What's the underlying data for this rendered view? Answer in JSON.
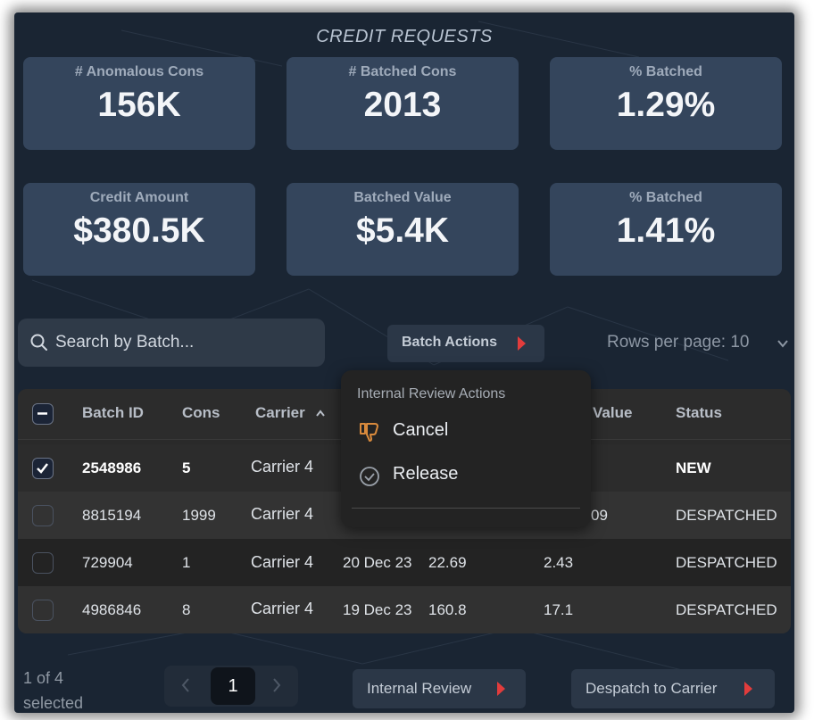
{
  "title": "CREDIT REQUESTS",
  "kpis": [
    {
      "label": "# Anomalous Cons",
      "value": "156K"
    },
    {
      "label": "# Batched Cons",
      "value": "2013"
    },
    {
      "label": "% Batched",
      "value": "1.29%"
    },
    {
      "label": "Credit Amount",
      "value": "$380.5K"
    },
    {
      "label": "Batched Value",
      "value": "$5.4K"
    },
    {
      "label": "% Batched",
      "value": "1.41%"
    }
  ],
  "search": {
    "placeholder": "Search by Batch...",
    "icon": "search-icon"
  },
  "batch_actions": {
    "label": "Batch Actions"
  },
  "rows_per_page": {
    "label": "Rows per page: 10"
  },
  "table": {
    "headers": {
      "batch_id": "Batch ID",
      "cons": "Cons",
      "carrier": "Carrier",
      "value": "Value",
      "status": "Status"
    },
    "rows": [
      {
        "batch_id": "2548986",
        "cons": "5",
        "carrier": "Carrier 4",
        "date": "",
        "amount": "",
        "value": "",
        "status": "NEW",
        "selected": true
      },
      {
        "batch_id": "8815194",
        "cons": "1999",
        "carrier": "Carrier 4",
        "date": "",
        "amount": "",
        "value": "09",
        "status": "DESPATCHED",
        "selected": false
      },
      {
        "batch_id": "729904",
        "cons": "1",
        "carrier": "Carrier 4",
        "date": "20 Dec 23",
        "amount": "22.69",
        "value": "2.43",
        "status": "DESPATCHED",
        "selected": false
      },
      {
        "batch_id": "4986846",
        "cons": "8",
        "carrier": "Carrier 4",
        "date": "19 Dec 23",
        "amount": "160.8",
        "value": "17.1",
        "status": "DESPATCHED",
        "selected": false
      }
    ]
  },
  "popup": {
    "title": "Internal Review Actions",
    "items": [
      {
        "label": "Cancel",
        "icon": "thumbs-down-icon"
      },
      {
        "label": "Release",
        "icon": "check-circle-icon"
      }
    ]
  },
  "footer": {
    "selected_count_line1": "1 of 4",
    "selected_count_line2": "selected",
    "current_page": "1",
    "internal_review_label": "Internal Review",
    "despatch_label": "Despatch to Carrier"
  },
  "colors": {
    "accent_arrow": "#e23c3c",
    "card_bg": "#34455c",
    "thumb_icon": "#d98a3c"
  }
}
